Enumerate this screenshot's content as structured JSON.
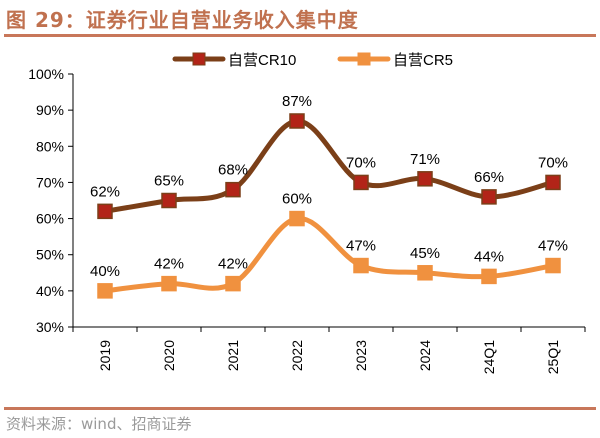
{
  "title": "图 29：证券行业自营业务收入集中度",
  "source": "资料来源：wind、招商证券",
  "colors": {
    "title": "#c0714f",
    "rule": "#c8775a"
  },
  "chart_data": {
    "type": "line",
    "categories": [
      "2019",
      "2020",
      "2021",
      "2022",
      "2023",
      "2024",
      "24Q1",
      "25Q1"
    ],
    "series": [
      {
        "name": "自营CR10",
        "values": [
          62,
          65,
          68,
          87,
          70,
          71,
          66,
          70
        ],
        "labels": [
          "62%",
          "65%",
          "68%",
          "87%",
          "70%",
          "71%",
          "66%",
          "70%"
        ],
        "color": "#7b3f18",
        "marker_color": "#b22418",
        "marker": "square"
      },
      {
        "name": "自营CR5",
        "values": [
          40,
          42,
          42,
          60,
          47,
          45,
          44,
          47
        ],
        "labels": [
          "40%",
          "42%",
          "42%",
          "60%",
          "47%",
          "45%",
          "44%",
          "47%"
        ],
        "color": "#f0913f",
        "marker_color": "#f0913f",
        "marker": "square"
      }
    ],
    "ylim": [
      30,
      100
    ],
    "yticks": [
      "30%",
      "40%",
      "50%",
      "60%",
      "70%",
      "80%",
      "90%",
      "100%"
    ],
    "smooth": true,
    "grid": false,
    "legend": "top"
  }
}
